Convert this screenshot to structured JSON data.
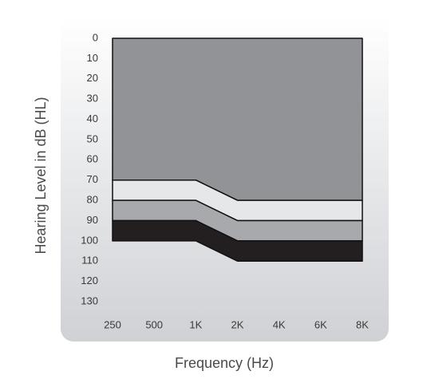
{
  "chart_data": {
    "type": "stacked_area",
    "y_axis_label": "Hearing Level in dB (HL)",
    "x_axis_label": "Frequency (Hz)",
    "categories": [
      "250",
      "500",
      "1K",
      "2K",
      "4K",
      "6K",
      "8K"
    ],
    "ylim": [
      0,
      130
    ],
    "yticks": [
      0,
      10,
      20,
      30,
      40,
      50,
      60,
      70,
      80,
      90,
      100,
      110,
      120,
      130
    ],
    "inverted_y": true,
    "series": [
      {
        "color": "#929396",
        "values": [
          70,
          70,
          70,
          80,
          80,
          80,
          80
        ]
      },
      {
        "color": "#e6e7e8",
        "values": [
          10,
          10,
          10,
          10,
          10,
          10,
          10
        ]
      },
      {
        "color": "#a7a9ac",
        "values": [
          10,
          10,
          10,
          10,
          10,
          10,
          10
        ]
      },
      {
        "color": "#231f20",
        "values": [
          10,
          10,
          10,
          10,
          10,
          10,
          10
        ]
      }
    ]
  }
}
